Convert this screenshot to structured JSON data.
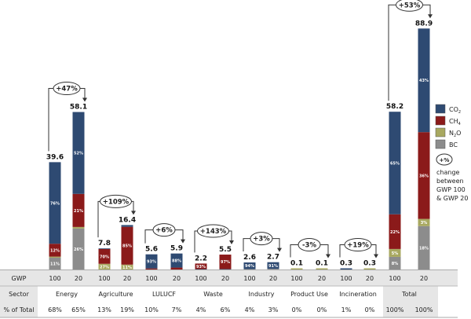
{
  "chart_data": {
    "type": "bar",
    "stacked": true,
    "ylim": [
      0,
      90
    ],
    "grid": false,
    "legend_position": "right",
    "colors": {
      "CO2": "#2e4a72",
      "CH4": "#8b1a1a",
      "N2O": "#a8a860",
      "BC": "#8c8c8c"
    },
    "legend": [
      {
        "key": "CO2",
        "label": "CO",
        "sub": "2"
      },
      {
        "key": "CH4",
        "label": "CH",
        "sub": "4"
      },
      {
        "key": "N2O",
        "label": "N",
        "sub": "2",
        "suffix": "O"
      },
      {
        "key": "BC",
        "label": "BC",
        "sub": ""
      }
    ],
    "legend_note": {
      "oval": "+%",
      "lines": [
        "change",
        "between",
        "GWP 100",
        "& GWP 20"
      ]
    },
    "row_headers": {
      "gwp": "GWP",
      "sector": "Sector",
      "share": "% of Total"
    },
    "groups": [
      {
        "sector": "Energy",
        "change": "+47%",
        "bars": [
          {
            "gwp": "100",
            "total": 39.6,
            "label": "39.6",
            "share": "68%",
            "segments": [
              [
                "BC",
                11,
                "11%"
              ],
              [
                "N2O",
                1,
                ""
              ],
              [
                "CH4",
                12,
                "12%"
              ],
              [
                "CO2",
                76,
                "76%"
              ]
            ]
          },
          {
            "gwp": "20",
            "total": 58.1,
            "label": "58.1",
            "share": "65%",
            "segments": [
              [
                "BC",
                26,
                "26%"
              ],
              [
                "N2O",
                1,
                ""
              ],
              [
                "CH4",
                21,
                "21%"
              ],
              [
                "CO2",
                52,
                "52%"
              ]
            ]
          }
        ]
      },
      {
        "sector": "Agriculture",
        "change": "+109%",
        "bars": [
          {
            "gwp": "100",
            "total": 7.8,
            "label": "7.8",
            "share": "13%",
            "segments": [
              [
                "N2O",
                27,
                "27%"
              ],
              [
                "CH4",
                70,
                "70%"
              ],
              [
                "CO2",
                3,
                ""
              ]
            ]
          },
          {
            "gwp": "20",
            "total": 16.4,
            "label": "16.4",
            "share": "19%",
            "segments": [
              [
                "N2O",
                11,
                "11%"
              ],
              [
                "CH4",
                85,
                "85%"
              ],
              [
                "CO2",
                4,
                ""
              ]
            ]
          }
        ]
      },
      {
        "sector": "LULUCF",
        "change": "+6%",
        "bars": [
          {
            "gwp": "100",
            "total": 5.6,
            "label": "5.6",
            "share": "10%",
            "segments": [
              [
                "CH4",
                7,
                ""
              ],
              [
                "CO2",
                93,
                "93%"
              ]
            ]
          },
          {
            "gwp": "20",
            "total": 5.9,
            "label": "5.9",
            "share": "7%",
            "segments": [
              [
                "CH4",
                12,
                ""
              ],
              [
                "CO2",
                88,
                "88%"
              ]
            ]
          }
        ]
      },
      {
        "sector": "Waste",
        "change": "+143%",
        "bars": [
          {
            "gwp": "100",
            "total": 2.2,
            "label": "2.2",
            "share": "4%",
            "segments": [
              [
                "CO2",
                7,
                ""
              ],
              [
                "CH4",
                93,
                "93%"
              ]
            ]
          },
          {
            "gwp": "20",
            "total": 5.5,
            "label": "5.5",
            "share": "6%",
            "segments": [
              [
                "CO2",
                3,
                ""
              ],
              [
                "CH4",
                97,
                "97%"
              ]
            ]
          }
        ]
      },
      {
        "sector": "Industry",
        "change": "+3%",
        "bars": [
          {
            "gwp": "100",
            "total": 2.6,
            "label": "2.6",
            "share": "4%",
            "segments": [
              [
                "BC",
                6,
                ""
              ],
              [
                "CO2",
                94,
                "94%"
              ]
            ]
          },
          {
            "gwp": "20",
            "total": 2.7,
            "label": "2.7",
            "share": "3%",
            "segments": [
              [
                "BC",
                9,
                ""
              ],
              [
                "CO2",
                91,
                "91%"
              ]
            ]
          }
        ]
      },
      {
        "sector": "Product Use",
        "change": "-3%",
        "bars": [
          {
            "gwp": "100",
            "total": 0.1,
            "label": "0.1",
            "share": "0%",
            "segments": [
              [
                "N2O",
                100,
                ""
              ]
            ]
          },
          {
            "gwp": "20",
            "total": 0.1,
            "label": "0.1",
            "share": "0%",
            "segments": [
              [
                "N2O",
                100,
                ""
              ]
            ]
          }
        ]
      },
      {
        "sector": "Incineration",
        "change": "+19%",
        "bars": [
          {
            "gwp": "100",
            "total": 0.3,
            "label": "0.3",
            "share": "1%",
            "segments": [
              [
                "CO2",
                100,
                ""
              ]
            ]
          },
          {
            "gwp": "20",
            "total": 0.3,
            "label": "0.3",
            "share": "0%",
            "segments": [
              [
                "N2O",
                100,
                ""
              ]
            ]
          }
        ]
      },
      {
        "sector": "Total",
        "change": "+53%",
        "bars": [
          {
            "gwp": "100",
            "total": 58.2,
            "label": "58.2",
            "share": "100%",
            "segments": [
              [
                "BC",
                8,
                "8%"
              ],
              [
                "N2O",
                5,
                "5%"
              ],
              [
                "CH4",
                22,
                "22%"
              ],
              [
                "CO2",
                65,
                "65%"
              ]
            ]
          },
          {
            "gwp": "20",
            "total": 88.9,
            "label": "88.9",
            "share": "100%",
            "segments": [
              [
                "BC",
                18,
                "18%"
              ],
              [
                "N2O",
                3,
                "3%"
              ],
              [
                "CH4",
                36,
                "36%"
              ],
              [
                "CO2",
                43,
                "43%"
              ]
            ]
          }
        ]
      }
    ]
  }
}
